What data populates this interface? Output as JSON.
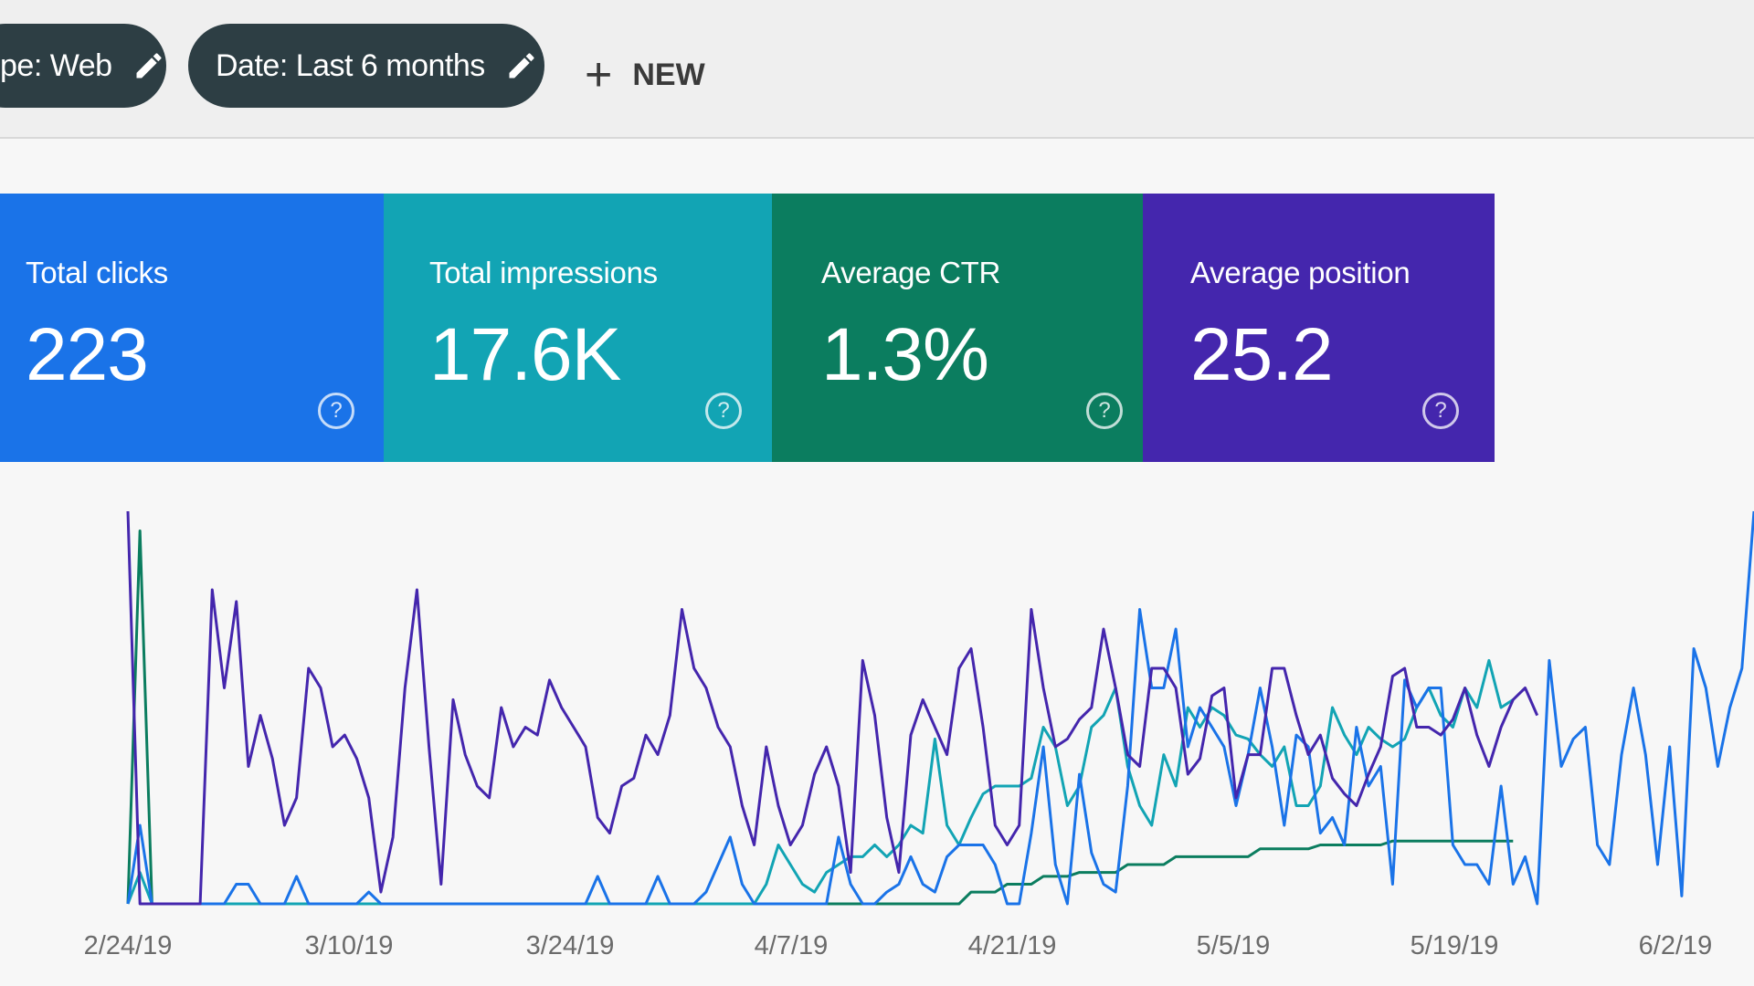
{
  "toolbar": {
    "type_filter": "pe: Web",
    "date_filter": "Date: Last 6 months",
    "new_label": "NEW"
  },
  "colors": {
    "clicks": "#1a73e8",
    "impressions": "#12a4b4",
    "ctr": "#0b7d5f",
    "position": "#4426ad",
    "chip_bg": "#2d3e44"
  },
  "metrics": [
    {
      "label": "Total clicks",
      "value": "223"
    },
    {
      "label": "Total impressions",
      "value": "17.6K"
    },
    {
      "label": "Average CTR",
      "value": "1.3%"
    },
    {
      "label": "Average position",
      "value": "25.2"
    }
  ],
  "help_glyph": "?",
  "chart_data": {
    "type": "line",
    "x_tick_labels": [
      "2/24/19",
      "3/10/19",
      "3/24/19",
      "4/7/19",
      "4/21/19",
      "5/5/19",
      "5/19/19",
      "6/2/19"
    ],
    "y_axis_labels": false,
    "grid": false,
    "series": [
      {
        "color": "#4426ad",
        "values": [
          100,
          0,
          0,
          0,
          0,
          0,
          0,
          80,
          55,
          77,
          35,
          48,
          37,
          20,
          27,
          60,
          55,
          40,
          43,
          37,
          27,
          3,
          17,
          55,
          80,
          40,
          5,
          52,
          38,
          30,
          27,
          50,
          40,
          45,
          43,
          57,
          50,
          45,
          40,
          22,
          18,
          30,
          32,
          43,
          38,
          48,
          75,
          60,
          55,
          45,
          40,
          25,
          15,
          40,
          25,
          15,
          20,
          33,
          40,
          30,
          8,
          62,
          48,
          22,
          8,
          43,
          52,
          45,
          38,
          60,
          65,
          45,
          20,
          15,
          20,
          75,
          55,
          40,
          42,
          47,
          50,
          70,
          55,
          38,
          35,
          60,
          60,
          55,
          33,
          37,
          53,
          55,
          27,
          38,
          38,
          60,
          60,
          48,
          38,
          43,
          32,
          28,
          25,
          33,
          40,
          58,
          60,
          45,
          45,
          43,
          47,
          55,
          43,
          35,
          45,
          52,
          55,
          48
        ]
      },
      {
        "color": "#1a73e8",
        "values": [
          0,
          20,
          0,
          0,
          0,
          0,
          0,
          0,
          0,
          5,
          5,
          0,
          0,
          0,
          7,
          0,
          0,
          0,
          0,
          0,
          3,
          0,
          0,
          0,
          0,
          0,
          0,
          0,
          0,
          0,
          0,
          0,
          0,
          0,
          0,
          0,
          0,
          0,
          0,
          7,
          0,
          0,
          0,
          0,
          7,
          0,
          0,
          0,
          3,
          10,
          17,
          5,
          0,
          0,
          0,
          0,
          0,
          0,
          0,
          17,
          5,
          0,
          0,
          3,
          5,
          12,
          5,
          3,
          12,
          15,
          15,
          15,
          10,
          0,
          0,
          18,
          40,
          10,
          0,
          33,
          13,
          5,
          3,
          30,
          75,
          55,
          55,
          70,
          40,
          50,
          45,
          40,
          25,
          38,
          55,
          40,
          20,
          43,
          40,
          18,
          22,
          15,
          45,
          30,
          35,
          5,
          57,
          50,
          55,
          55,
          15,
          10,
          10,
          5,
          30,
          5,
          12,
          0,
          62,
          35,
          42,
          45,
          15,
          10,
          38,
          55,
          38,
          10,
          40,
          2,
          65,
          55,
          35,
          50,
          60,
          100
        ]
      },
      {
        "color": "#12a4b4",
        "values": [
          0,
          8,
          0,
          0,
          0,
          0,
          0,
          0,
          0,
          0,
          0,
          0,
          0,
          0,
          0,
          0,
          0,
          0,
          0,
          0,
          0,
          0,
          0,
          0,
          0,
          0,
          0,
          0,
          0,
          0,
          0,
          0,
          0,
          0,
          0,
          0,
          0,
          0,
          0,
          0,
          0,
          0,
          0,
          0,
          0,
          0,
          0,
          0,
          0,
          0,
          0,
          0,
          0,
          5,
          15,
          10,
          5,
          3,
          8,
          10,
          12,
          12,
          15,
          12,
          15,
          20,
          18,
          42,
          20,
          15,
          22,
          28,
          30,
          30,
          30,
          32,
          45,
          40,
          25,
          30,
          45,
          48,
          55,
          35,
          25,
          20,
          38,
          30,
          50,
          45,
          50,
          48,
          43,
          42,
          38,
          35,
          40,
          25,
          25,
          30,
          50,
          43,
          38,
          45,
          42,
          40,
          42,
          50,
          55,
          48,
          45,
          55,
          50,
          62,
          50,
          52
        ]
      },
      {
        "color": "#0b7d5f",
        "values": [
          0,
          95,
          0,
          0,
          0,
          0,
          0,
          0,
          0,
          0,
          0,
          0,
          0,
          0,
          0,
          0,
          0,
          0,
          0,
          0,
          0,
          0,
          0,
          0,
          0,
          0,
          0,
          0,
          0,
          0,
          0,
          0,
          0,
          0,
          0,
          0,
          0,
          0,
          0,
          0,
          0,
          0,
          0,
          0,
          0,
          0,
          0,
          0,
          0,
          0,
          0,
          0,
          0,
          0,
          0,
          0,
          0,
          0,
          0,
          0,
          0,
          0,
          0,
          0,
          0,
          0,
          0,
          0,
          0,
          0,
          3,
          3,
          3,
          5,
          5,
          5,
          7,
          7,
          7,
          8,
          8,
          8,
          8,
          10,
          10,
          10,
          10,
          12,
          12,
          12,
          12,
          12,
          12,
          12,
          14,
          14,
          14,
          14,
          14,
          15,
          15,
          15,
          15,
          15,
          15,
          16,
          16,
          16,
          16,
          16,
          16,
          16,
          16,
          16,
          16,
          16
        ]
      }
    ]
  }
}
